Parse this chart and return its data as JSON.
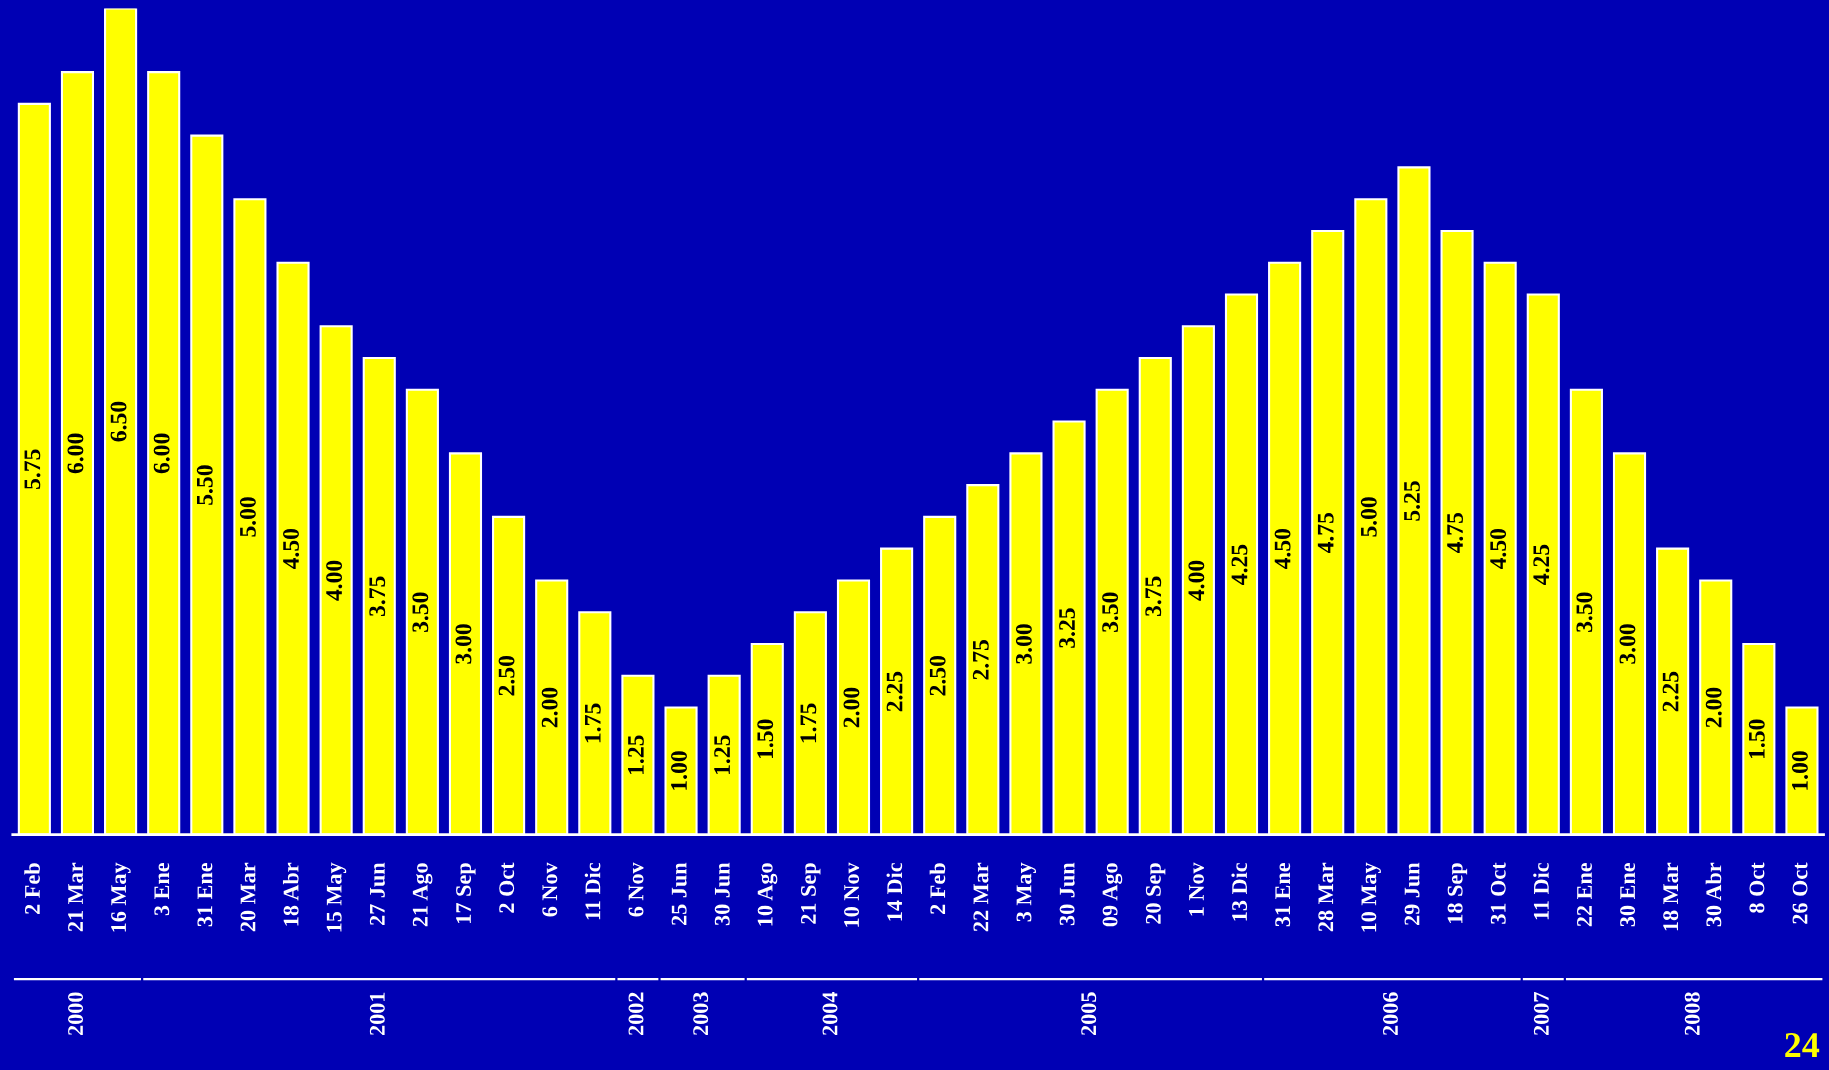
{
  "chart_data": {
    "type": "bar",
    "categories": [
      "2 Feb",
      "21 Mar",
      "16 May",
      "3 Ene",
      "31 Ene",
      "20 Mar",
      "18 Abr",
      "15 May",
      "27 Jun",
      "21 Ago",
      "17 Sep",
      "2 Oct",
      "6 Nov",
      "11 Dic",
      "6 Nov",
      "25 Jun",
      "30 Jun",
      "10 Ago",
      "21 Sep",
      "10 Nov",
      "14 Dic",
      "2 Feb",
      "22 Mar",
      "3 May",
      "30 Jun",
      "09 Ago",
      "20 Sep",
      "1 Nov",
      "13 Dic",
      "31 Ene",
      "28 Mar",
      "10 May",
      "29 Jun",
      "18 Sep",
      "31 Oct",
      "11 Dic",
      "22 Ene",
      "30 Ene",
      "18 Mar",
      "30 Abr",
      "8 Oct",
      "26 Oct"
    ],
    "values": [
      5.75,
      6.0,
      6.5,
      6.0,
      5.5,
      5.0,
      4.5,
      4.0,
      3.75,
      3.5,
      3.0,
      2.5,
      2.0,
      1.75,
      1.25,
      1.0,
      1.25,
      1.5,
      1.75,
      2.0,
      2.25,
      2.5,
      2.75,
      3.0,
      3.25,
      3.5,
      3.75,
      4.0,
      4.25,
      4.5,
      4.75,
      5.0,
      5.25,
      4.75,
      4.5,
      4.25,
      3.5,
      3.0,
      2.25,
      2.0,
      1.5,
      1.0
    ],
    "value_labels": [
      "5.75",
      "6.00",
      "6.50",
      "6.00",
      "5.50",
      "5.00",
      "4.50",
      "4.00",
      "3.75",
      "3.50",
      "3.00",
      "2.50",
      "2.00",
      "1.75",
      "1.25",
      "1.00",
      "1.25",
      "1.50",
      "1.75",
      "2.00",
      "2.25",
      "2.50",
      "2.75",
      "3.00",
      "3.25",
      "3.50",
      "3.75",
      "4.00",
      "4.25",
      "4.50",
      "4.75",
      "5.00",
      "5.25",
      "4.75",
      "4.50",
      "4.25",
      "3.50",
      "3.00",
      "2.25",
      "2.00",
      "1.50",
      "1.00"
    ],
    "color": "#ffff00",
    "annotations": [
      "2000",
      "2001",
      "2002",
      "2003",
      "2004",
      "2005",
      "2006",
      "2007",
      "2008",
      "24"
    ],
    "grid": false,
    "legend": false
  }
}
